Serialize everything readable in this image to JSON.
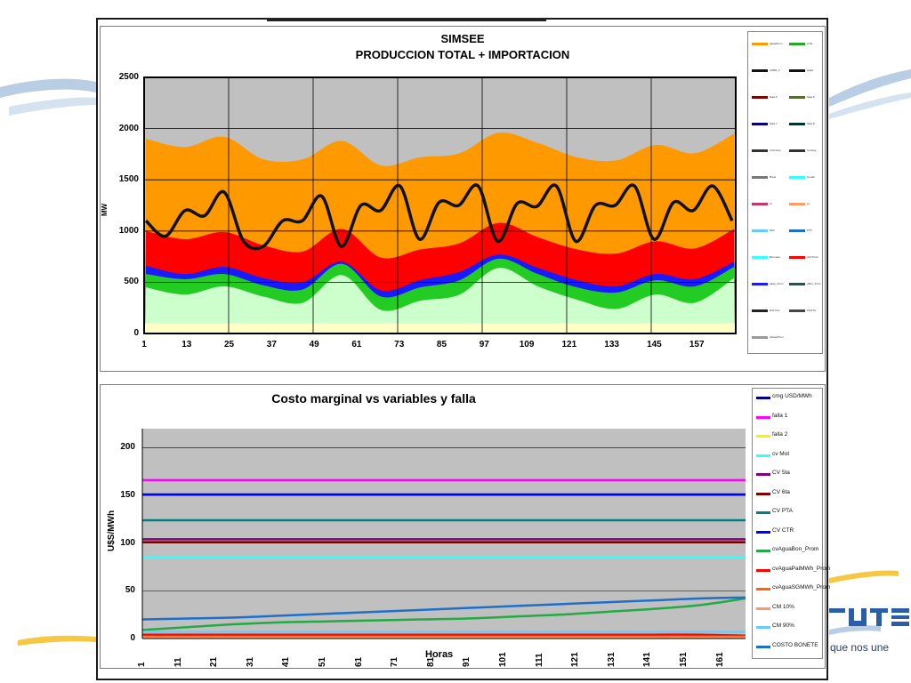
{
  "slide_bg": {
    "logo_text": "que nos une"
  },
  "chart_data": [
    {
      "type": "area",
      "title": "SIMSEE",
      "subtitle": "PRODUCCION TOTAL + IMPORTACION",
      "ylabel": "MW",
      "ylim": [
        0,
        2500
      ],
      "yticks": [
        0,
        500,
        1000,
        1500,
        2000,
        2500
      ],
      "xticks": [
        "1",
        "13",
        "25",
        "37",
        "49",
        "61",
        "73",
        "85",
        "97",
        "109",
        "121",
        "133",
        "145",
        "157"
      ],
      "xrange": [
        1,
        168
      ],
      "grid": true,
      "legend_position": "right",
      "legend": [
        "pEoEProm",
        "CTR",
        "ApBM_0",
        "ApEs",
        "Sala 5",
        "Sala 6",
        "Sala 7",
        "Sala 8",
        "Ciclo Esp",
        "Conting...",
        "Breal",
        "Cenab",
        "Vi",
        "Ar",
        "Motr",
        "PTA",
        "Biomasa",
        "pFA Prom",
        "pEsp_Prom",
        "pBon_Prom",
        "EOLICO",
        "PUNTA",
        "pSolarProm"
      ],
      "series": [
        {
          "name": "band_base_light",
          "color": "#ffffc6",
          "level": 100
        },
        {
          "name": "band_light_green",
          "color": "#ccffcc",
          "values": [
            450,
            380,
            460,
            360,
            300,
            570,
            230,
            320,
            380,
            640,
            460,
            330,
            240,
            380,
            300,
            540
          ]
        },
        {
          "name": "band_green",
          "color": "#22cc22",
          "values": [
            580,
            530,
            580,
            470,
            430,
            680,
            360,
            450,
            520,
            730,
            580,
            450,
            400,
            520,
            460,
            650
          ]
        },
        {
          "name": "band_blue",
          "color": "#1a1aff",
          "values": [
            660,
            580,
            650,
            540,
            500,
            700,
            420,
            520,
            600,
            770,
            640,
            520,
            460,
            580,
            530,
            700
          ]
        },
        {
          "name": "band_red",
          "color": "#ff0000",
          "values": [
            1000,
            920,
            990,
            860,
            800,
            1020,
            740,
            820,
            880,
            1080,
            940,
            820,
            780,
            900,
            830,
            1020
          ]
        },
        {
          "name": "band_orange",
          "color": "#ff9900",
          "values": [
            1900,
            1820,
            1920,
            1700,
            1700,
            1880,
            1640,
            1720,
            1760,
            1960,
            1860,
            1720,
            1690,
            1840,
            1760,
            1950
          ]
        },
        {
          "name": "demanda",
          "color": "#111111",
          "values": [
            1100,
            950,
            1200,
            1150,
            1380,
            900,
            850,
            1100,
            1100,
            1340,
            850,
            1250,
            1200,
            1440,
            920,
            1280,
            1250,
            1440,
            900,
            1270,
            1240,
            1440,
            900,
            1250,
            1250,
            1440,
            920,
            1280,
            1200,
            1440,
            1100
          ]
        }
      ]
    },
    {
      "type": "line",
      "title": "Costo marginal vs variables y falla",
      "xlabel": "Horas",
      "ylabel": "U$S/MWh",
      "ylim": [
        0,
        220
      ],
      "yticks": [
        0,
        50,
        100,
        150,
        200
      ],
      "xticks": [
        "1",
        "11",
        "21",
        "31",
        "41",
        "51",
        "61",
        "71",
        "81",
        "91",
        "101",
        "111",
        "121",
        "131",
        "141",
        "151",
        "161"
      ],
      "xrange": [
        1,
        168
      ],
      "grid": true,
      "legend_position": "right",
      "series": [
        {
          "name": "cmg USD/MWh",
          "color": "#00008b",
          "values": [
            1,
            1
          ]
        },
        {
          "name": "falla 1",
          "color": "#ff00ff",
          "values": [
            166,
            166
          ]
        },
        {
          "name": "falla 2",
          "color": "#ffee00",
          "values": [
            1,
            1
          ]
        },
        {
          "name": "cv Mot",
          "color": "#33ffff",
          "values": [
            85,
            85
          ]
        },
        {
          "name": "CV 5ta",
          "color": "#800080",
          "values": [
            104,
            104
          ]
        },
        {
          "name": "CV 6ta",
          "color": "#800000",
          "values": [
            101,
            101
          ]
        },
        {
          "name": "CV PTA",
          "color": "#008080",
          "values": [
            124,
            124
          ]
        },
        {
          "name": "CV CTR",
          "color": "#0000ff",
          "values": [
            151,
            151
          ]
        },
        {
          "name": "cvAguaBon_Prom",
          "color": "#22aa44",
          "values": [
            9,
            12,
            15,
            17,
            18,
            19,
            20,
            21,
            23,
            25,
            28,
            31,
            35,
            42
          ]
        },
        {
          "name": "cvAguaPalMWh_Prom",
          "color": "#ff0000",
          "values": [
            4,
            4,
            4,
            4,
            4,
            4,
            4,
            4,
            4,
            4,
            4,
            4,
            4,
            3
          ]
        },
        {
          "name": "cvAguaSGMWh_Prom",
          "color": "#ff6600",
          "values": [
            2,
            2,
            2,
            2,
            2,
            2,
            2,
            2,
            2,
            2,
            2,
            2,
            2,
            2
          ]
        },
        {
          "name": "CM 10%",
          "color": "#ff9966",
          "values": [
            1,
            1
          ]
        },
        {
          "name": "CM 90%",
          "color": "#66ccff",
          "values": [
            7,
            7
          ]
        },
        {
          "name": "COSTO BONETE",
          "color": "#1e6fc8",
          "values": [
            20,
            21,
            22,
            24,
            26,
            28,
            30,
            32,
            34,
            36,
            38,
            40,
            42,
            43
          ]
        }
      ],
      "legend_labels": [
        "cmg USD/MWh",
        "falla 1",
        "falla 2",
        "cv Mot",
        "CV 5ta",
        "CV 6ta",
        "CV PTA",
        "CV CTR",
        "cvAguaBon_Pro\nm",
        "cvAguaPalMWh_\nProm",
        "cvAguaSGMWh_\nProm",
        "CM 10%",
        "CM 90%",
        "COSTO BONETE"
      ]
    }
  ]
}
